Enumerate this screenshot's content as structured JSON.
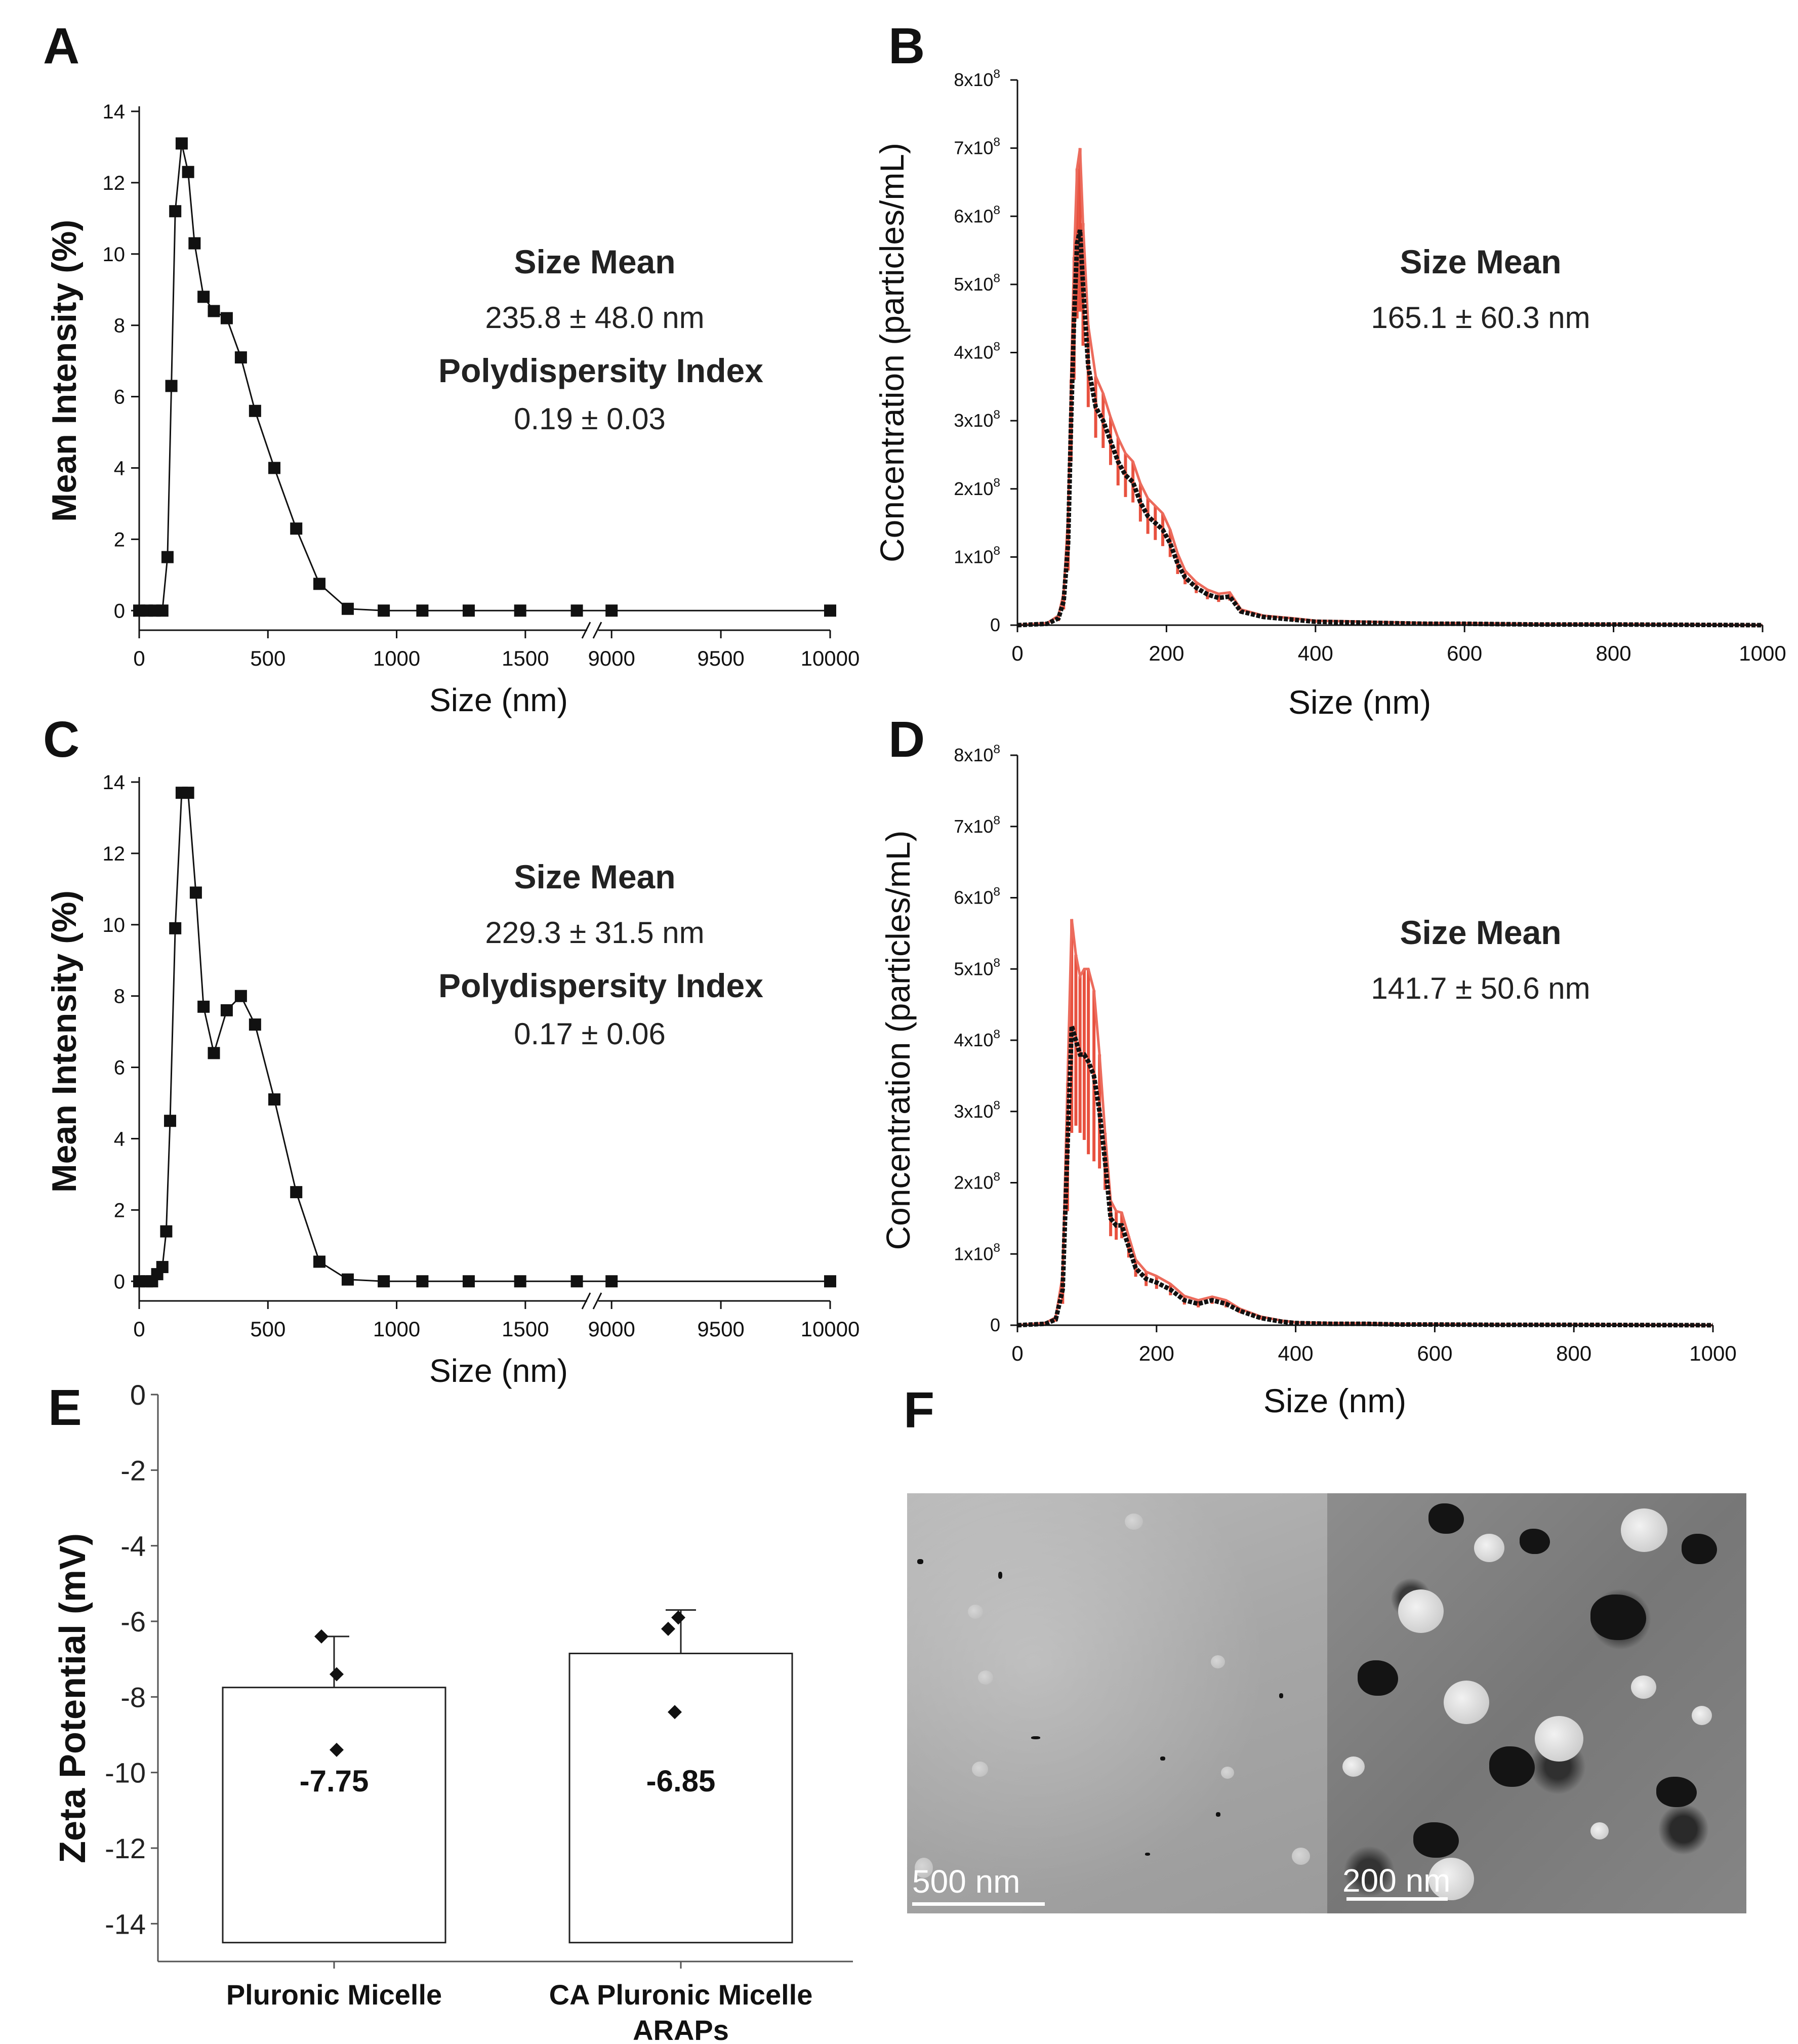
{
  "panels": {
    "A": {
      "letter": "A",
      "chart_data": {
        "type": "line",
        "xlabel": "Size (nm)",
        "ylabel": "Mean Intensity (%)",
        "x_axis_break": true,
        "ylim": [
          0,
          14
        ],
        "yticks": [
          "0",
          "2",
          "4",
          "6",
          "8",
          "10",
          "12",
          "14"
        ],
        "xticks": [
          "0",
          "500",
          "1000",
          "1500",
          "9000",
          "9500",
          "10000"
        ],
        "x": [
          0,
          30,
          60,
          90,
          110,
          125,
          140,
          165,
          190,
          215,
          250,
          290,
          340,
          395,
          450,
          525,
          610,
          700,
          810,
          950,
          1100,
          1280,
          1480,
          1700,
          9000,
          10000
        ],
        "values": [
          0,
          0,
          0,
          0,
          1.5,
          6.3,
          11.2,
          13.1,
          12.3,
          10.3,
          8.8,
          8.4,
          8.2,
          7.1,
          5.6,
          4.0,
          2.3,
          0.75,
          0.05,
          0,
          0,
          0,
          0,
          0,
          0,
          0
        ],
        "annotation": {
          "size_title": "Size Mean",
          "size_value": "235.8 ± 48.0 nm",
          "pdi_title": "Polydispersity Index",
          "pdi_value": "0.19 ± 0.03"
        }
      }
    },
    "B": {
      "letter": "B",
      "chart_data": {
        "type": "line",
        "xlabel": "Size (nm)",
        "ylabel": "Concentration (particles/mL)",
        "xlim": [
          0,
          1000
        ],
        "ylim": [
          0,
          800000000
        ],
        "xticks": [
          "0",
          "200",
          "400",
          "600",
          "800",
          "1000"
        ],
        "yticks": [
          "0",
          "1x10⁸",
          "2x10⁸",
          "3x10⁸",
          "4x10⁸",
          "5x10⁸",
          "6x10⁸",
          "7x10⁸",
          "8x10⁸"
        ],
        "x": [
          0,
          40,
          55,
          62,
          68,
          72,
          76,
          80,
          84,
          88,
          95,
          105,
          115,
          125,
          135,
          145,
          155,
          165,
          175,
          185,
          195,
          205,
          215,
          225,
          240,
          255,
          270,
          285,
          300,
          330,
          370,
          400,
          450,
          500,
          550,
          600,
          700,
          800,
          1000
        ],
        "values": [
          0,
          2000000,
          10000000,
          35000000,
          120000000,
          300000000,
          450000000,
          560000000,
          580000000,
          500000000,
          380000000,
          320000000,
          300000000,
          270000000,
          240000000,
          220000000,
          210000000,
          180000000,
          160000000,
          150000000,
          140000000,
          120000000,
          90000000,
          70000000,
          55000000,
          45000000,
          40000000,
          42000000,
          20000000,
          12000000,
          8000000,
          5000000,
          4000000,
          3000000,
          2000000,
          2000000,
          1000000,
          1000000,
          0
        ],
        "error": [
          0,
          1000000,
          4000000,
          12000000,
          40000000,
          60000000,
          90000000,
          110000000,
          120000000,
          90000000,
          60000000,
          45000000,
          40000000,
          35000000,
          35000000,
          32000000,
          30000000,
          28000000,
          26000000,
          25000000,
          24000000,
          20000000,
          15000000,
          10000000,
          8000000,
          7000000,
          6000000,
          6000000,
          3000000,
          2000000,
          2000000,
          1500000,
          1500000,
          1200000,
          1000000,
          1000000,
          500000,
          500000,
          0
        ],
        "annotation": {
          "size_title": "Size Mean",
          "size_value": "165.1 ± 60.3 nm"
        }
      }
    },
    "C": {
      "letter": "C",
      "chart_data": {
        "type": "line",
        "xlabel": "Size (nm)",
        "ylabel": "Mean Intensity (%)",
        "x_axis_break": true,
        "ylim": [
          0,
          14
        ],
        "yticks": [
          "0",
          "2",
          "4",
          "6",
          "8",
          "10",
          "12",
          "14"
        ],
        "xticks": [
          "0",
          "500",
          "1000",
          "1500",
          "9000",
          "9500",
          "10000"
        ],
        "x": [
          0,
          30,
          50,
          70,
          90,
          105,
          120,
          140,
          165,
          190,
          220,
          250,
          290,
          340,
          395,
          450,
          525,
          610,
          700,
          810,
          950,
          1100,
          1280,
          1480,
          1700,
          9000,
          10000
        ],
        "values": [
          0,
          0,
          0,
          0.2,
          0.4,
          1.4,
          4.5,
          9.9,
          13.7,
          13.7,
          10.9,
          7.7,
          6.4,
          7.6,
          8.0,
          7.2,
          5.1,
          2.5,
          0.55,
          0.05,
          0,
          0,
          0,
          0,
          0,
          0,
          0
        ],
        "annotation": {
          "size_title": "Size Mean",
          "size_value": "229.3 ± 31.5 nm",
          "pdi_title": "Polydispersity Index",
          "pdi_value": "0.17 ± 0.06"
        }
      }
    },
    "D": {
      "letter": "D",
      "chart_data": {
        "type": "line",
        "xlabel": "Size (nm)",
        "ylabel": "Concentration (particles/mL)",
        "xlim": [
          0,
          1000
        ],
        "ylim": [
          0,
          800000000
        ],
        "xticks": [
          "0",
          "200",
          "400",
          "600",
          "800",
          "1000"
        ],
        "yticks": [
          "0",
          "1x10⁸",
          "2x10⁸",
          "3x10⁸",
          "4x10⁸",
          "5x10⁸",
          "6x10⁸",
          "7x10⁸",
          "8x10⁸"
        ],
        "x": [
          0,
          40,
          55,
          65,
          72,
          78,
          84,
          90,
          96,
          102,
          110,
          118,
          126,
          134,
          142,
          150,
          160,
          170,
          185,
          200,
          220,
          240,
          260,
          280,
          300,
          320,
          350,
          380,
          400,
          450,
          500,
          550,
          600,
          700,
          800,
          1000
        ],
        "values": [
          0,
          2000000,
          8000000,
          50000000,
          250000000,
          420000000,
          400000000,
          380000000,
          380000000,
          370000000,
          350000000,
          300000000,
          230000000,
          150000000,
          140000000,
          140000000,
          110000000,
          80000000,
          65000000,
          60000000,
          50000000,
          35000000,
          30000000,
          35000000,
          30000000,
          20000000,
          10000000,
          5000000,
          3000000,
          2000000,
          2000000,
          1000000,
          1000000,
          500000,
          500000,
          0
        ],
        "error": [
          0,
          1000000,
          3000000,
          20000000,
          90000000,
          150000000,
          120000000,
          110000000,
          120000000,
          130000000,
          120000000,
          80000000,
          40000000,
          25000000,
          20000000,
          18000000,
          15000000,
          12000000,
          10000000,
          9000000,
          8000000,
          6000000,
          5000000,
          5000000,
          5000000,
          3000000,
          2000000,
          1500000,
          1000000,
          1000000,
          800000,
          500000,
          500000,
          300000,
          300000,
          0
        ],
        "annotation": {
          "size_title": "Size Mean",
          "size_value": "141.7 ± 50.6 nm"
        }
      }
    },
    "E": {
      "letter": "E",
      "chart_data": {
        "type": "bar",
        "ylabel": "Zeta Potential (mV)",
        "ylim": [
          -15,
          0
        ],
        "yticks": [
          "0",
          "-2",
          "-4",
          "-6",
          "-8",
          "-10",
          "-12",
          "-14"
        ],
        "categories": [
          "Pluronic Micelle",
          "CA Pluronic Micelle"
        ],
        "category_sublabels": [
          "",
          "ARAPs"
        ],
        "values": [
          -7.75,
          -6.85
        ],
        "value_labels": [
          "-7.75",
          "-6.85"
        ],
        "error_up": [
          1.35,
          1.15
        ],
        "points": [
          [
            -6.4,
            -7.4,
            -9.4
          ],
          [
            -6.2,
            -5.9,
            -8.4
          ]
        ]
      }
    },
    "F": {
      "letter": "F",
      "images": [
        {
          "scale_label": "500 nm"
        },
        {
          "scale_label": "200 nm"
        }
      ]
    }
  }
}
